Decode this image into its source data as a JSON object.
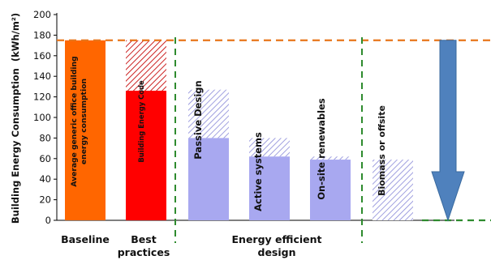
{
  "chart_data": {
    "type": "bar",
    "ylabel": "Building Energy Consumption",
    "yunit": "(kWh/m²)",
    "ylim": [
      0,
      200
    ],
    "yticks": [
      0,
      20,
      40,
      60,
      80,
      100,
      120,
      140,
      160,
      180,
      200
    ],
    "grid": false,
    "reference_line": {
      "value": 175,
      "color": "#E8751A",
      "style": "dashed"
    },
    "bars": [
      {
        "label": "Average generic office building energy consumption",
        "solid": 175,
        "total": 175,
        "solid_color": "#FF6600",
        "hatched": false
      },
      {
        "label": "Building Energy Code",
        "solid": 126,
        "total": 175,
        "solid_color": "#FF0000",
        "hatch_color": "#CC2222",
        "hatched": true
      },
      {
        "label": "Passive Design",
        "solid": 80,
        "total": 127,
        "solid_color": "#A8A8F0",
        "hatch_color": "#8888D8",
        "hatched": true
      },
      {
        "label": "Active systems",
        "solid": 62,
        "total": 80,
        "solid_color": "#A8A8F0",
        "hatch_color": "#8888D8",
        "hatched": true
      },
      {
        "label": "On-site renewables",
        "solid": 59,
        "total": 62,
        "solid_color": "#A8A8F0",
        "hatch_color": "#8888D8",
        "hatched": true
      },
      {
        "label": "Biomass or offsite",
        "solid": 0,
        "total": 59,
        "solid_color": "#A8A8F0",
        "hatch_color": "#8888D8",
        "hatched": true
      }
    ],
    "categories": [
      {
        "lines": [
          "Baseline"
        ]
      },
      {
        "lines": [
          "Best",
          "practices"
        ]
      },
      {
        "lines": [
          "Energy efficient",
          "design"
        ]
      }
    ],
    "reduction_arrow": {
      "from": 175,
      "to": 0,
      "color": "#4F81BD"
    },
    "colors": {
      "divider": "#2E8B2E",
      "axis": "#000000"
    }
  }
}
